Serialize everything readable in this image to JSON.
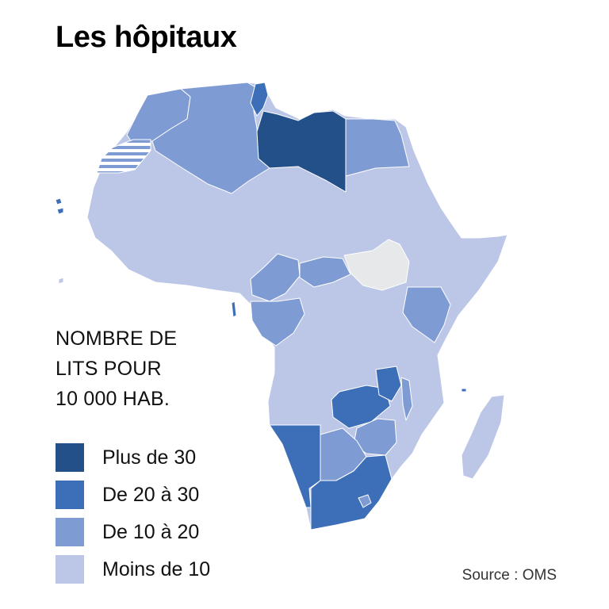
{
  "title": "Les hôpitaux",
  "legend": {
    "title_lines": [
      "NOMBRE DE",
      "LITS POUR",
      "10 000 HAB."
    ],
    "items": [
      {
        "label": "Plus de 30",
        "color": "#24508a"
      },
      {
        "label": "De 20 à 30",
        "color": "#3d6fb8"
      },
      {
        "label": "De 10 à 20",
        "color": "#7f9bd3"
      },
      {
        "label": "Moins de 10",
        "color": "#bcc7e8"
      }
    ],
    "no_data_color": "#e6e8e9"
  },
  "source": "Source : OMS",
  "regions": [
    {
      "name": "Maroc",
      "class": "De 10 à 20"
    },
    {
      "name": "Algérie",
      "class": "De 10 à 20"
    },
    {
      "name": "Tunisie",
      "class": "De 20 à 30"
    },
    {
      "name": "Libye",
      "class": "Plus de 30"
    },
    {
      "name": "Égypte",
      "class": "De 10 à 20"
    },
    {
      "name": "Sahara occidental",
      "class": "hatched"
    },
    {
      "name": "Mauritanie",
      "class": "Moins de 10"
    },
    {
      "name": "Mali",
      "class": "Moins de 10"
    },
    {
      "name": "Niger",
      "class": "Moins de 10"
    },
    {
      "name": "Tchad",
      "class": "Moins de 10"
    },
    {
      "name": "Soudan",
      "class": "Moins de 10"
    },
    {
      "name": "Soudan du Sud",
      "class": "no data"
    },
    {
      "name": "Éthiopie",
      "class": "Moins de 10"
    },
    {
      "name": "Somalie",
      "class": "Moins de 10"
    },
    {
      "name": "Kenya",
      "class": "De 10 à 20"
    },
    {
      "name": "Cameroun",
      "class": "De 10 à 20"
    },
    {
      "name": "Gabon",
      "class": "De 10 à 20"
    },
    {
      "name": "Congo",
      "class": "De 10 à 20"
    },
    {
      "name": "RD Congo",
      "class": "Moins de 10"
    },
    {
      "name": "Angola",
      "class": "Moins de 10"
    },
    {
      "name": "Zambie",
      "class": "De 20 à 30"
    },
    {
      "name": "Malawi",
      "class": "De 20 à 30"
    },
    {
      "name": "Tanzanie",
      "class": "Moins de 10"
    },
    {
      "name": "Mozambique",
      "class": "Moins de 10"
    },
    {
      "name": "Zimbabwe",
      "class": "De 10 à 20"
    },
    {
      "name": "Botswana",
      "class": "De 10 à 20"
    },
    {
      "name": "Namibie",
      "class": "De 20 à 30"
    },
    {
      "name": "Afrique du Sud",
      "class": "De 20 à 30"
    },
    {
      "name": "Madagascar",
      "class": "Moins de 10"
    }
  ]
}
